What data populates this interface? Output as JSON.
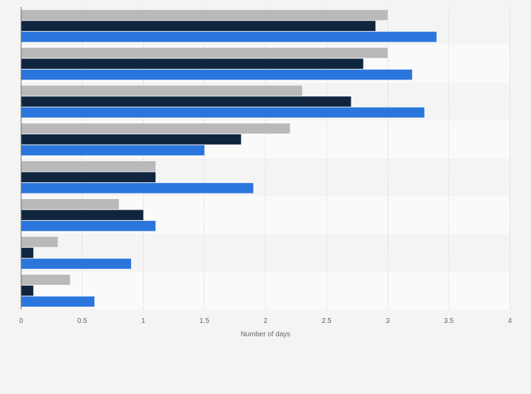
{
  "chart_data": {
    "type": "bar",
    "orientation": "horizontal",
    "xlabel": "Number of days",
    "xlim": [
      0,
      4
    ],
    "xticks": [
      "0",
      "0.5",
      "1",
      "1.5",
      "2",
      "2.5",
      "3",
      "3.5",
      "4"
    ],
    "grid": true,
    "legend": "none",
    "categories": [
      "",
      "",
      "",
      "",
      "",
      "",
      "",
      ""
    ],
    "series": [
      {
        "color": "#b9b9b9",
        "values": [
          3.0,
          3.0,
          2.3,
          2.2,
          1.1,
          0.8,
          0.3,
          0.4
        ]
      },
      {
        "color": "#10263f",
        "values": [
          2.9,
          2.8,
          2.7,
          1.8,
          1.1,
          1.0,
          0.1,
          0.1
        ]
      },
      {
        "color": "#2a76dd",
        "values": [
          3.4,
          3.2,
          3.3,
          1.5,
          1.9,
          1.1,
          0.9,
          0.6
        ]
      }
    ]
  }
}
